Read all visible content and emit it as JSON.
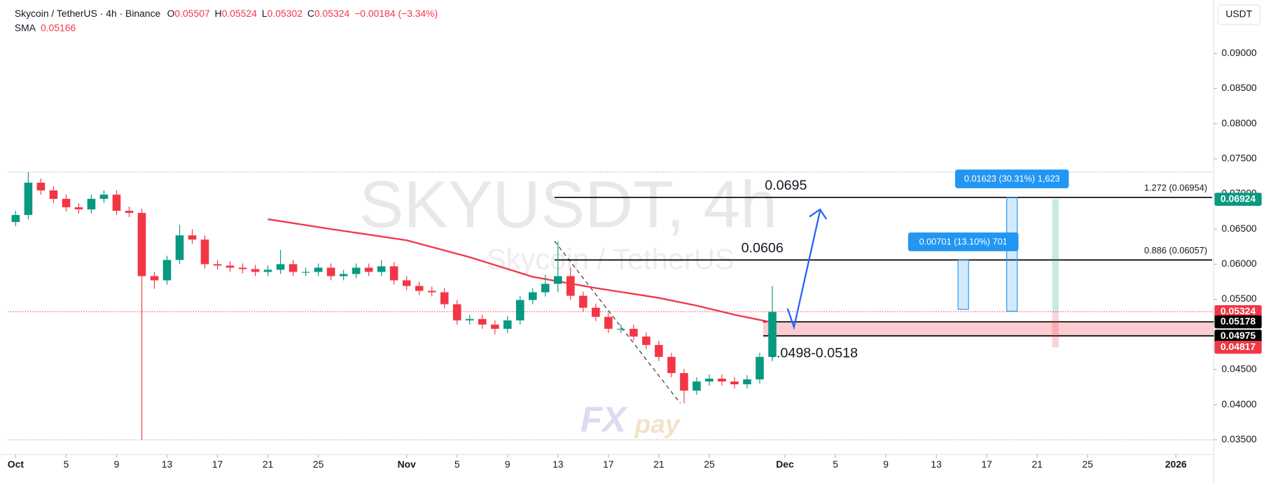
{
  "chart_data": {
    "type": "candlestick",
    "header": {
      "symbol": "Skycoin / TetherUS · 4h · Binance",
      "o_label": "O",
      "o": "0.05507",
      "h_label": "H",
      "h": "0.05524",
      "l_label": "L",
      "l": "0.05302",
      "c_label": "C",
      "c": "0.05324",
      "change": "−0.00184 (−3.34%)",
      "sma_label": "SMA",
      "sma": "0.05166"
    },
    "currency": "USDT",
    "watermark": "SKYUSDT, 4h",
    "watermark_sub": "Skycoin / TetherUS",
    "logo_fx": "FX",
    "logo_pay": "pay",
    "xlim": [
      -0.6,
      95
    ],
    "ylim": [
      0.0329,
      0.0976
    ],
    "xticks": [
      {
        "value": 0,
        "label": "Oct"
      },
      {
        "value": 4,
        "label": "5"
      },
      {
        "value": 8,
        "label": "9"
      },
      {
        "value": 12,
        "label": "13"
      },
      {
        "value": 16,
        "label": "17"
      },
      {
        "value": 20,
        "label": "21"
      },
      {
        "value": 24,
        "label": "25"
      },
      {
        "value": 31,
        "label": "Nov"
      },
      {
        "value": 35,
        "label": "5"
      },
      {
        "value": 39,
        "label": "9"
      },
      {
        "value": 43,
        "label": "13"
      },
      {
        "value": 47,
        "label": "17"
      },
      {
        "value": 51,
        "label": "21"
      },
      {
        "value": 55,
        "label": "25"
      },
      {
        "value": 61,
        "label": "Dec"
      },
      {
        "value": 65,
        "label": "5"
      },
      {
        "value": 69,
        "label": "9"
      },
      {
        "value": 73,
        "label": "13"
      },
      {
        "value": 77,
        "label": "17"
      },
      {
        "value": 81,
        "label": "21"
      },
      {
        "value": 85,
        "label": "25"
      },
      {
        "value": 92,
        "label": "2026"
      }
    ],
    "yticks": [
      {
        "value": 0.035,
        "label": "0.03500"
      },
      {
        "value": 0.04,
        "label": "0.04000"
      },
      {
        "value": 0.045,
        "label": "0.04500"
      },
      {
        "value": 0.05,
        "label": "0.05000"
      },
      {
        "value": 0.055,
        "label": "0.05500"
      },
      {
        "value": 0.06,
        "label": "0.06000"
      },
      {
        "value": 0.065,
        "label": "0.06500"
      },
      {
        "value": 0.07,
        "label": "0.07000"
      },
      {
        "value": 0.075,
        "label": "0.07500"
      },
      {
        "value": 0.08,
        "label": "0.08000"
      },
      {
        "value": 0.085,
        "label": "0.08500"
      },
      {
        "value": 0.09,
        "label": "0.09000"
      }
    ],
    "up_color": "#089981",
    "down_color": "#f23645",
    "x": [
      0,
      1,
      2,
      3,
      4,
      5,
      6,
      7,
      8,
      9,
      10,
      11,
      12,
      13,
      14,
      15,
      16,
      17,
      18,
      19,
      20,
      21,
      22,
      23,
      24,
      25,
      26,
      27,
      28,
      29,
      30,
      31,
      32,
      33,
      34,
      35,
      36,
      37,
      38,
      39,
      40,
      41,
      42,
      43,
      44,
      45,
      46,
      47,
      48,
      49,
      50,
      51,
      52,
      53,
      54,
      55,
      56,
      57,
      58,
      59,
      60
    ],
    "open": [
      0.066,
      0.067,
      0.0716,
      0.0705,
      0.0693,
      0.0681,
      0.0678,
      0.0693,
      0.0699,
      0.0676,
      0.0673,
      0.0583,
      0.0577,
      0.0606,
      0.0641,
      0.0635,
      0.06,
      0.0598,
      0.0595,
      0.0593,
      0.0589,
      0.0592,
      0.06,
      0.0589,
      0.0589,
      0.0595,
      0.0583,
      0.0586,
      0.0595,
      0.0589,
      0.0597,
      0.0577,
      0.0569,
      0.0562,
      0.056,
      0.0543,
      0.052,
      0.0522,
      0.0514,
      0.0508,
      0.052,
      0.0549,
      0.056,
      0.0572,
      0.0583,
      0.0555,
      0.0538,
      0.0525,
      0.0508,
      0.0508,
      0.0497,
      0.0485,
      0.0468,
      0.0445,
      0.042,
      0.0433,
      0.0437,
      0.0433,
      0.0429,
      0.0436,
      0.0468
    ],
    "high": [
      0.0676,
      0.0731,
      0.0722,
      0.0711,
      0.0699,
      0.0687,
      0.0699,
      0.0705,
      0.0705,
      0.0682,
      0.0679,
      0.0589,
      0.0612,
      0.0656,
      0.065,
      0.0641,
      0.0606,
      0.0604,
      0.0601,
      0.0599,
      0.0598,
      0.062,
      0.0606,
      0.0595,
      0.0601,
      0.0601,
      0.0592,
      0.0601,
      0.0601,
      0.0606,
      0.0603,
      0.0583,
      0.0575,
      0.0568,
      0.0566,
      0.0549,
      0.0528,
      0.0528,
      0.052,
      0.0526,
      0.0555,
      0.0566,
      0.0585,
      0.0633,
      0.0595,
      0.0561,
      0.0544,
      0.0531,
      0.0514,
      0.0514,
      0.0503,
      0.0491,
      0.0474,
      0.0451,
      0.0439,
      0.0443,
      0.0443,
      0.0439,
      0.0442,
      0.0474,
      0.0569
    ],
    "low": [
      0.0654,
      0.0664,
      0.0699,
      0.0687,
      0.0675,
      0.0672,
      0.0672,
      0.0687,
      0.067,
      0.0667,
      0.035,
      0.0565,
      0.0571,
      0.06,
      0.0629,
      0.0594,
      0.0592,
      0.0589,
      0.0587,
      0.0583,
      0.0583,
      0.0586,
      0.0583,
      0.0583,
      0.0583,
      0.0577,
      0.0577,
      0.058,
      0.0583,
      0.0583,
      0.0571,
      0.0563,
      0.0556,
      0.0554,
      0.0537,
      0.0514,
      0.0514,
      0.0508,
      0.05,
      0.0502,
      0.0514,
      0.0543,
      0.0554,
      0.056,
      0.0549,
      0.0532,
      0.0519,
      0.0502,
      0.0502,
      0.0491,
      0.0479,
      0.0462,
      0.0439,
      0.0402,
      0.0414,
      0.0427,
      0.0427,
      0.0423,
      0.0423,
      0.043,
      0.0462
    ],
    "close": [
      0.067,
      0.0716,
      0.0705,
      0.0693,
      0.0681,
      0.0678,
      0.0693,
      0.0699,
      0.0676,
      0.0673,
      0.0583,
      0.0577,
      0.0606,
      0.0641,
      0.0635,
      0.06,
      0.0598,
      0.0595,
      0.0593,
      0.0589,
      0.0592,
      0.06,
      0.0589,
      0.0589,
      0.0595,
      0.0583,
      0.0586,
      0.0595,
      0.0589,
      0.0597,
      0.0577,
      0.0569,
      0.0562,
      0.056,
      0.0543,
      0.052,
      0.0522,
      0.0514,
      0.0508,
      0.052,
      0.0549,
      0.056,
      0.0572,
      0.0583,
      0.0555,
      0.0538,
      0.0525,
      0.0508,
      0.0508,
      0.0497,
      0.0485,
      0.0468,
      0.0445,
      0.042,
      0.0433,
      0.0437,
      0.0433,
      0.0429,
      0.0436,
      0.0468,
      0.0532
    ],
    "sma": {
      "color": "#f23645",
      "x": [
        20,
        25,
        31,
        36,
        41,
        46,
        51,
        54,
        57,
        60
      ],
      "values": [
        0.0664,
        0.065,
        0.0634,
        0.061,
        0.0582,
        0.0566,
        0.0552,
        0.0541,
        0.0528,
        0.0517
      ]
    },
    "levels": [
      {
        "label": "0.0695",
        "value": 0.0695,
        "fib": "1.272 (0.06954)"
      },
      {
        "label": "0.0606",
        "value": 0.0606,
        "fib": "0.886 (0.06057)"
      }
    ],
    "zone": {
      "label": "0.0498-0.0518",
      "low": 0.0498,
      "high": 0.0518
    },
    "measures": [
      {
        "label": "0.00701 (13.10%) 701",
        "from": 0.05357,
        "to": 0.06058
      },
      {
        "label": "0.01623 (30.31%) 1,623",
        "from": 0.05331,
        "to": 0.06954
      }
    ],
    "position": {
      "target": 0.06924,
      "entry": 0.05324,
      "stop": 0.04817
    },
    "price_tags": [
      {
        "value": 0.06924,
        "color": "#089981"
      },
      {
        "value": 0.05324,
        "color": "#f23645"
      },
      {
        "value": 0.05178,
        "color": "#000000"
      },
      {
        "value": 0.04975,
        "color": "#000000"
      },
      {
        "value": 0.04817,
        "color": "#f23645"
      }
    ]
  }
}
